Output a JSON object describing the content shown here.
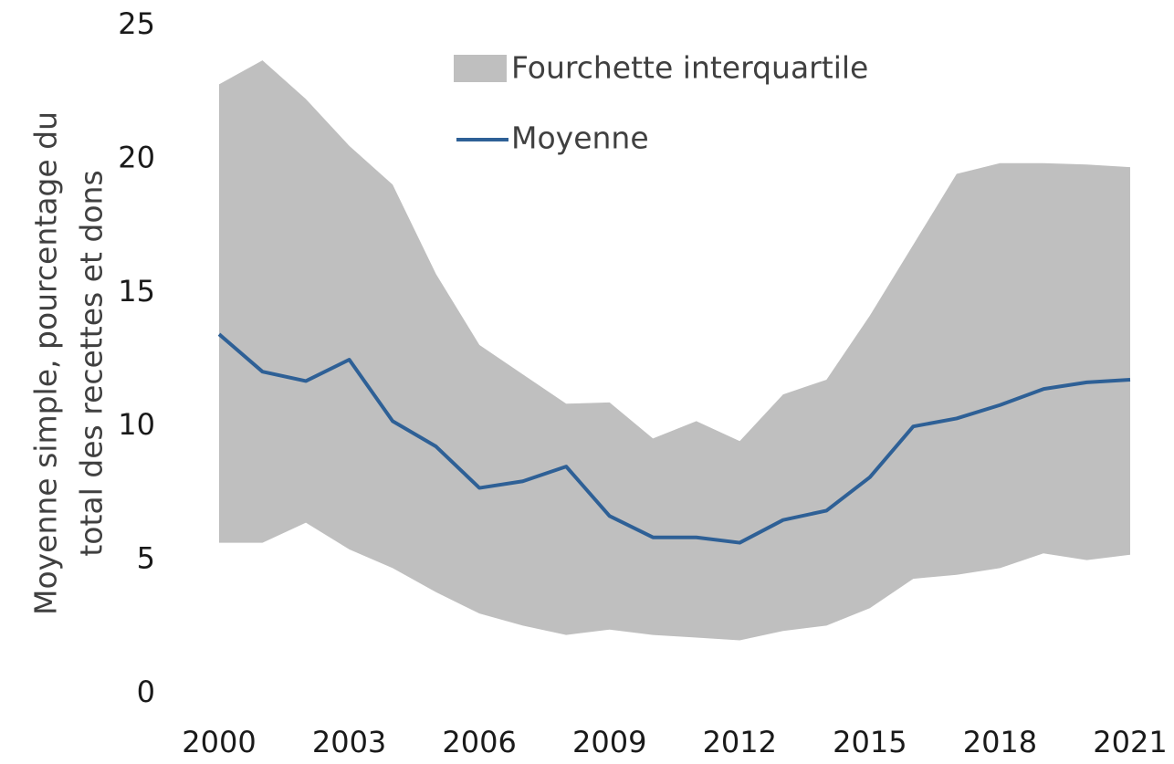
{
  "chart_data": {
    "type": "band-line",
    "ylabel": [
      "Moyenne simple, pourcentage du",
      "total des recettes et dons"
    ],
    "x": [
      2000,
      2001,
      2002,
      2003,
      2004,
      2005,
      2006,
      2007,
      2008,
      2009,
      2010,
      2011,
      2012,
      2013,
      2014,
      2015,
      2016,
      2017,
      2018,
      2019,
      2020,
      2021
    ],
    "band": {
      "name": "Fourchette interquartile",
      "color": "#bfbfbf",
      "lower": [
        5.65,
        5.65,
        6.4,
        5.4,
        4.7,
        3.8,
        3.0,
        2.55,
        2.2,
        2.4,
        2.2,
        2.1,
        2.0,
        2.35,
        2.55,
        3.2,
        4.3,
        4.45,
        4.7,
        5.25,
        5.0,
        5.2
      ],
      "upper": [
        22.8,
        23.7,
        22.25,
        20.5,
        19.05,
        15.7,
        13.05,
        11.95,
        10.85,
        10.9,
        9.55,
        10.2,
        9.45,
        11.2,
        11.75,
        14.15,
        16.8,
        19.45,
        19.85,
        19.85,
        19.8,
        19.7
      ]
    },
    "series": [
      {
        "name": "Moyenne",
        "color": "#2e6096",
        "values": [
          13.45,
          12.05,
          11.7,
          12.5,
          10.2,
          9.25,
          7.7,
          7.95,
          8.5,
          6.65,
          5.85,
          5.85,
          5.65,
          6.5,
          6.85,
          8.1,
          10.0,
          10.3,
          10.8,
          11.4,
          11.65,
          11.75
        ]
      }
    ],
    "xlim": [
      2000,
      2021
    ],
    "xticks": [
      2000,
      2003,
      2006,
      2009,
      2012,
      2015,
      2018,
      2021
    ],
    "ylim": [
      0,
      25
    ],
    "yticks": [
      0,
      5,
      10,
      15,
      20,
      25
    ],
    "grid": false,
    "legend": "top"
  }
}
